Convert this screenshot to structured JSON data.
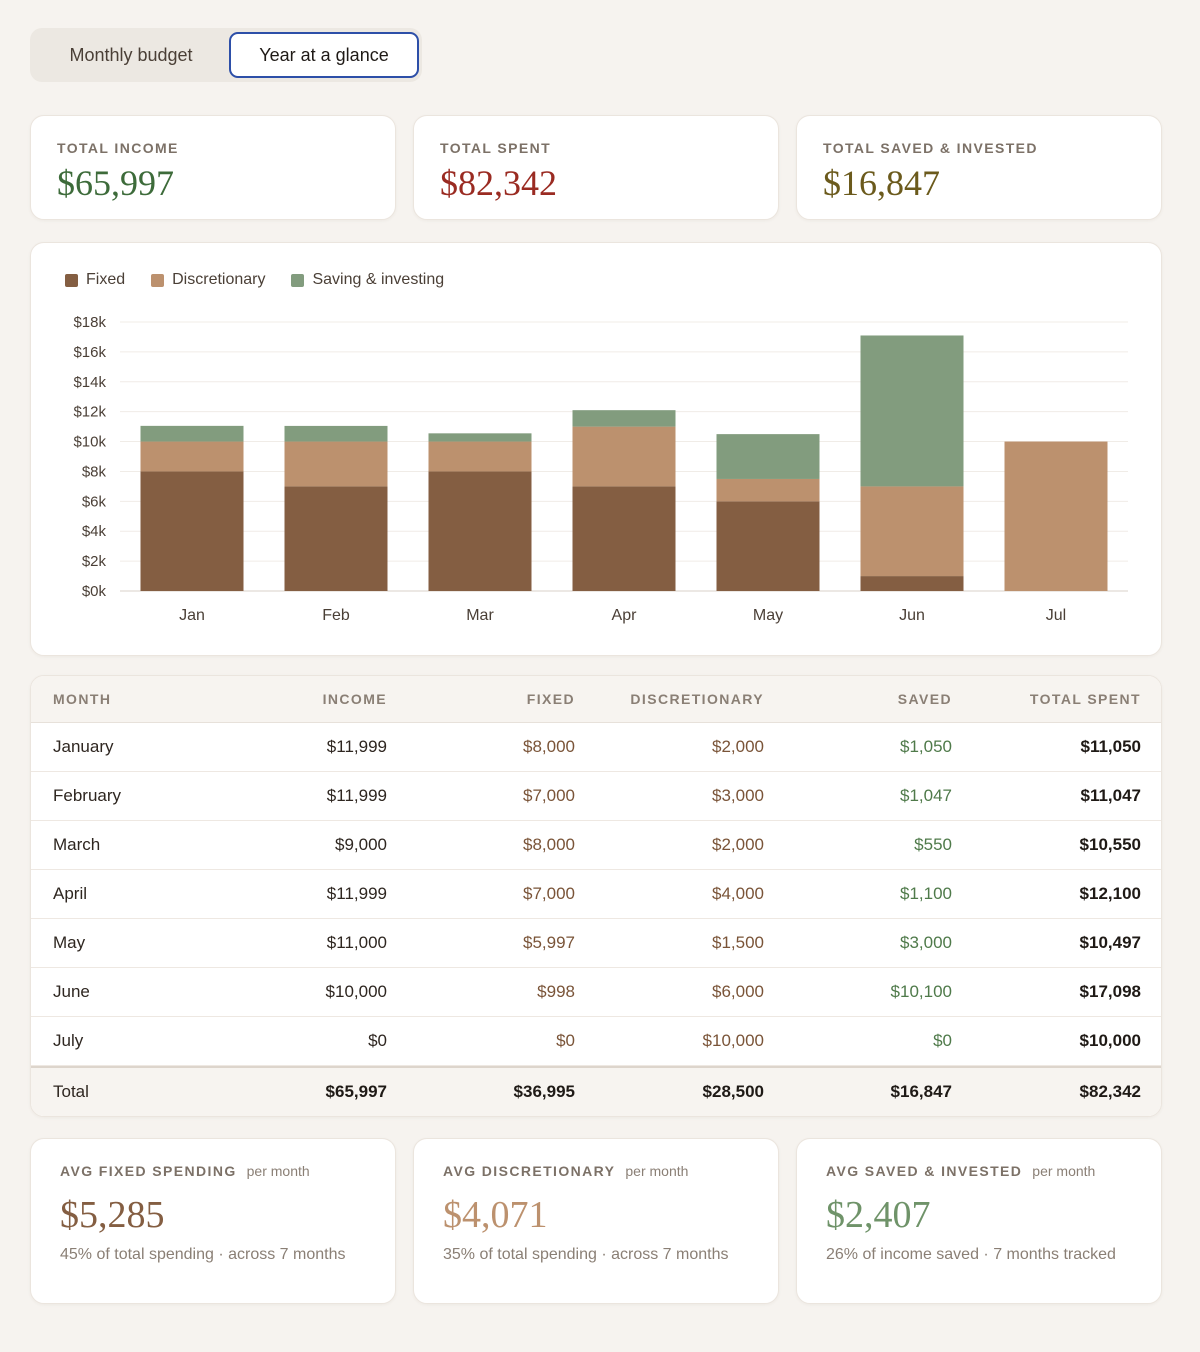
{
  "tabs": [
    {
      "label": "Monthly budget",
      "active": false
    },
    {
      "label": "Year at a glance",
      "active": true
    }
  ],
  "summary": {
    "income": {
      "label": "TOTAL INCOME",
      "value": "$65,997",
      "color": "#3d6b3a"
    },
    "spent": {
      "label": "TOTAL SPENT",
      "value": "$82,342",
      "color": "#9a2b22"
    },
    "saved": {
      "label": "TOTAL SAVED & INVESTED",
      "value": "$16,847",
      "color": "#6b5a1c"
    }
  },
  "colors": {
    "fixed": "#845e42",
    "discretionary": "#bc916e",
    "saving": "#829c7e"
  },
  "chart_data": {
    "type": "bar",
    "stacked": true,
    "categories": [
      "Jan",
      "Feb",
      "Mar",
      "Apr",
      "May",
      "Jun",
      "Jul"
    ],
    "series": [
      {
        "name": "Fixed",
        "values": [
          8000,
          7000,
          8000,
          7000,
          5997,
          998,
          0
        ]
      },
      {
        "name": "Discretionary",
        "values": [
          2000,
          3000,
          2000,
          4000,
          1500,
          6000,
          10000
        ]
      },
      {
        "name": "Saving & investing",
        "values": [
          1050,
          1047,
          550,
          1100,
          3000,
          10100,
          0
        ]
      }
    ],
    "yticks": [
      "$0k",
      "$2k",
      "$4k",
      "$6k",
      "$8k",
      "$10k",
      "$12k",
      "$14k",
      "$16k",
      "$18k"
    ],
    "ylim": [
      0,
      18000
    ],
    "legend_position": "top-left",
    "grid": true
  },
  "table": {
    "headers": [
      "MONTH",
      "INCOME",
      "FIXED",
      "DISCRETIONARY",
      "SAVED",
      "TOTAL SPENT"
    ],
    "rows": [
      [
        "January",
        "$11,999",
        "$8,000",
        "$2,000",
        "$1,050",
        "$11,050"
      ],
      [
        "February",
        "$11,999",
        "$7,000",
        "$3,000",
        "$1,047",
        "$11,047"
      ],
      [
        "March",
        "$9,000",
        "$8,000",
        "$2,000",
        "$550",
        "$10,550"
      ],
      [
        "April",
        "$11,999",
        "$7,000",
        "$4,000",
        "$1,100",
        "$12,100"
      ],
      [
        "May",
        "$11,000",
        "$5,997",
        "$1,500",
        "$3,000",
        "$10,497"
      ],
      [
        "June",
        "$10,000",
        "$998",
        "$6,000",
        "$10,100",
        "$17,098"
      ],
      [
        "July",
        "$0",
        "$0",
        "$10,000",
        "$0",
        "$10,000"
      ]
    ],
    "total": [
      "Total",
      "$65,997",
      "$36,995",
      "$28,500",
      "$16,847",
      "$82,342"
    ]
  },
  "averages": [
    {
      "label": "AVG FIXED SPENDING",
      "per": "per month",
      "value": "$5,285",
      "sub": "45% of total spending · across 7 months",
      "color": "#845e42"
    },
    {
      "label": "AVG DISCRETIONARY",
      "per": "per month",
      "value": "$4,071",
      "sub": "35% of total spending · across 7 months",
      "color": "#bc916e"
    },
    {
      "label": "AVG SAVED & INVESTED",
      "per": "per month",
      "value": "$2,407",
      "sub": "26% of income saved · 7 months tracked",
      "color": "#6f9369"
    }
  ]
}
